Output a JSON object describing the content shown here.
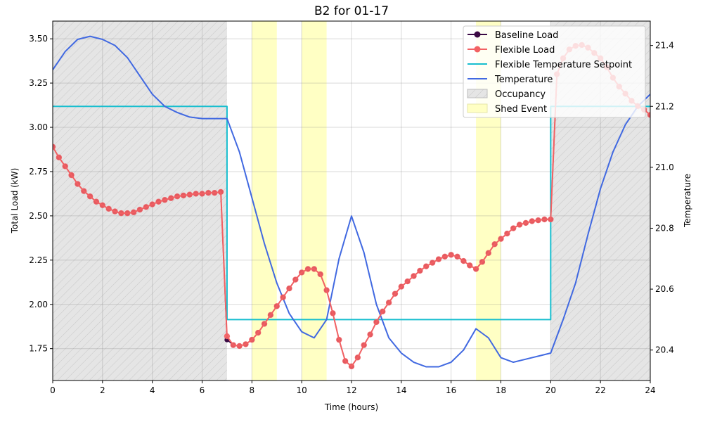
{
  "chart_data": {
    "type": "line",
    "title": "B2 for 01-17",
    "xlabel": "Time (hours)",
    "ylabel": "Total Load (kW)",
    "y2label": "Temperature",
    "xlim": [
      0,
      24
    ],
    "ylim": [
      1.57,
      3.6
    ],
    "y2lim": [
      20.3,
      21.48
    ],
    "xticks": [
      0,
      2,
      4,
      6,
      8,
      10,
      12,
      14,
      16,
      18,
      20,
      22,
      24
    ],
    "yticks": [
      1.75,
      2.0,
      2.25,
      2.5,
      2.75,
      3.0,
      3.25,
      3.5
    ],
    "y2ticks": [
      20.4,
      20.6,
      20.8,
      21.0,
      21.2,
      21.4
    ],
    "grid": true,
    "legend_position": "top-right",
    "occupancy_spans": [
      [
        0,
        7
      ],
      [
        20,
        24
      ]
    ],
    "shed_event_spans": [
      [
        8,
        9
      ],
      [
        10,
        11
      ],
      [
        17,
        18
      ]
    ],
    "series": [
      {
        "name": "Baseline Load",
        "axis": "left",
        "color": "#3b0a45",
        "marker": "circle",
        "x": [
          0,
          0.25,
          0.5,
          0.75,
          1,
          1.25,
          1.5,
          1.75,
          2,
          2.25,
          2.5,
          2.75,
          3,
          3.25,
          3.5,
          3.75,
          4,
          4.25,
          4.5,
          4.75,
          5,
          5.25,
          5.5,
          5.75,
          6,
          6.25,
          6.5,
          6.75,
          7,
          7.25,
          7.5,
          7.75,
          8,
          8.25,
          8.5,
          8.75,
          9,
          9.25,
          9.5,
          9.75,
          10,
          10.25,
          10.5,
          10.75,
          11,
          11.25,
          11.5,
          11.75,
          12,
          12.25,
          12.5,
          12.75,
          13,
          13.25,
          13.5,
          13.75,
          14,
          14.25,
          14.5,
          14.75,
          15,
          15.25,
          15.5,
          15.75,
          16,
          16.25,
          16.5,
          16.75,
          17,
          17.25,
          17.5,
          17.75,
          18,
          18.25,
          18.5,
          18.75,
          19,
          19.25,
          19.5,
          19.75,
          20,
          20.25,
          20.5,
          20.75,
          21,
          21.25,
          21.5,
          21.75,
          22,
          22.25,
          22.5,
          22.75,
          23,
          23.25,
          23.5,
          23.75,
          24
        ],
        "values": [
          2.89,
          2.83,
          2.78,
          2.73,
          2.68,
          2.64,
          2.61,
          2.58,
          2.56,
          2.54,
          2.525,
          2.515,
          2.515,
          2.52,
          2.535,
          2.55,
          2.565,
          2.58,
          2.59,
          2.6,
          2.61,
          2.615,
          2.62,
          2.625,
          2.625,
          2.63,
          2.63,
          2.635,
          1.8,
          1.77,
          1.765,
          1.775,
          1.8,
          1.84,
          1.89,
          1.94,
          1.99,
          2.04,
          2.09,
          2.14,
          2.18,
          2.2,
          2.2,
          2.17,
          2.08,
          1.95,
          1.8,
          1.68,
          1.65,
          1.7,
          1.77,
          1.83,
          1.9,
          1.96,
          2.01,
          2.06,
          2.1,
          2.13,
          2.16,
          2.19,
          2.215,
          2.235,
          2.255,
          2.27,
          2.28,
          2.27,
          2.245,
          2.22,
          2.2,
          2.24,
          2.29,
          2.34,
          2.37,
          2.4,
          2.43,
          2.45,
          2.46,
          2.47,
          2.475,
          2.48,
          2.48,
          3.3,
          3.39,
          3.44,
          3.46,
          3.465,
          3.45,
          3.42,
          3.39,
          3.34,
          3.28,
          3.23,
          3.19,
          3.15,
          3.12,
          3.1,
          3.07
        ]
      },
      {
        "name": "Flexible Load",
        "axis": "left",
        "color": "#f26163",
        "marker": "circle",
        "x": [
          0,
          0.25,
          0.5,
          0.75,
          1,
          1.25,
          1.5,
          1.75,
          2,
          2.25,
          2.5,
          2.75,
          3,
          3.25,
          3.5,
          3.75,
          4,
          4.25,
          4.5,
          4.75,
          5,
          5.25,
          5.5,
          5.75,
          6,
          6.25,
          6.5,
          6.75,
          7,
          7.25,
          7.5,
          7.75,
          8,
          8.25,
          8.5,
          8.75,
          9,
          9.25,
          9.5,
          9.75,
          10,
          10.25,
          10.5,
          10.75,
          11,
          11.25,
          11.5,
          11.75,
          12,
          12.25,
          12.5,
          12.75,
          13,
          13.25,
          13.5,
          13.75,
          14,
          14.25,
          14.5,
          14.75,
          15,
          15.25,
          15.5,
          15.75,
          16,
          16.25,
          16.5,
          16.75,
          17,
          17.25,
          17.5,
          17.75,
          18,
          18.25,
          18.5,
          18.75,
          19,
          19.25,
          19.5,
          19.75,
          20,
          20.25,
          20.5,
          20.75,
          21,
          21.25,
          21.5,
          21.75,
          22,
          22.25,
          22.5,
          22.75,
          23,
          23.25,
          23.5,
          23.75,
          24
        ],
        "values": [
          2.89,
          2.83,
          2.78,
          2.73,
          2.68,
          2.64,
          2.61,
          2.58,
          2.56,
          2.54,
          2.525,
          2.515,
          2.515,
          2.52,
          2.535,
          2.55,
          2.565,
          2.58,
          2.59,
          2.6,
          2.61,
          2.615,
          2.62,
          2.625,
          2.625,
          2.63,
          2.63,
          2.635,
          1.82,
          1.77,
          1.765,
          1.775,
          1.8,
          1.84,
          1.89,
          1.94,
          1.99,
          2.04,
          2.09,
          2.14,
          2.18,
          2.2,
          2.2,
          2.17,
          2.08,
          1.95,
          1.8,
          1.68,
          1.65,
          1.7,
          1.77,
          1.83,
          1.9,
          1.96,
          2.01,
          2.06,
          2.1,
          2.13,
          2.16,
          2.19,
          2.215,
          2.235,
          2.255,
          2.27,
          2.28,
          2.27,
          2.245,
          2.22,
          2.2,
          2.24,
          2.29,
          2.34,
          2.37,
          2.4,
          2.43,
          2.45,
          2.46,
          2.47,
          2.475,
          2.48,
          2.48,
          3.3,
          3.39,
          3.44,
          3.46,
          3.465,
          3.45,
          3.42,
          3.39,
          3.34,
          3.28,
          3.23,
          3.19,
          3.15,
          3.12,
          3.1,
          3.07
        ]
      },
      {
        "name": "Flexible Temperature Setpoint",
        "axis": "right",
        "color": "#17becf",
        "marker": "none",
        "x": [
          0,
          7,
          7,
          20,
          20,
          24
        ],
        "values": [
          21.2,
          21.2,
          20.5,
          20.5,
          21.2,
          21.2
        ]
      },
      {
        "name": "Temperature",
        "axis": "right",
        "color": "#4169e1",
        "marker": "none",
        "x": [
          0,
          0.5,
          1,
          1.5,
          2,
          2.5,
          3,
          3.5,
          4,
          4.5,
          5,
          5.5,
          6,
          6.5,
          7,
          7.5,
          8,
          8.5,
          9,
          9.5,
          10,
          10.5,
          11,
          11.5,
          12,
          12.5,
          13,
          13.5,
          14,
          14.5,
          15,
          15.5,
          16,
          16.5,
          17,
          17.5,
          18,
          18.5,
          19,
          19.5,
          20,
          20.5,
          21,
          21.5,
          22,
          22.5,
          23,
          23.5,
          24
        ],
        "values": [
          21.32,
          21.38,
          21.42,
          21.43,
          21.42,
          21.4,
          21.36,
          21.3,
          21.24,
          21.2,
          21.18,
          21.165,
          21.16,
          21.16,
          21.16,
          21.05,
          20.9,
          20.75,
          20.62,
          20.52,
          20.46,
          20.44,
          20.5,
          20.7,
          20.84,
          20.72,
          20.55,
          20.44,
          20.39,
          20.36,
          20.345,
          20.345,
          20.36,
          20.4,
          20.47,
          20.44,
          20.375,
          20.36,
          20.37,
          20.38,
          20.39,
          20.5,
          20.62,
          20.78,
          20.93,
          21.05,
          21.14,
          21.2,
          21.24
        ]
      }
    ],
    "legend_entries": [
      "Baseline Load",
      "Flexible Load",
      "Flexible Temperature Setpoint",
      "Temperature",
      "Occupancy",
      "Shed Event"
    ],
    "colors": {
      "occupancy_fill": "#e5e5e5",
      "occupancy_hatch": "#c8c8c8",
      "shed_fill": "#ffffc4",
      "grid": "#d9d9d9"
    }
  }
}
